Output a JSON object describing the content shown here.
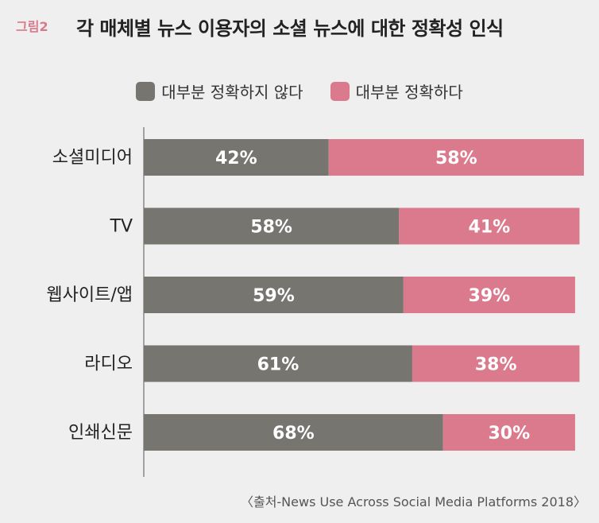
{
  "figure_label": "그림2",
  "title": "각 매체별 뉴스 이용자의 소셜 뉴스에 대한 정확성 인식",
  "source": "〈출처-News Use Across Social Media Platforms 2018〉",
  "colors": {
    "not_accurate": "#777570",
    "accurate": "#db7a8d",
    "axis": "#555555",
    "bar_text": "#ffffff",
    "label_text": "#222222"
  },
  "chart_data": {
    "type": "bar",
    "orientation": "horizontal",
    "stacked": true,
    "categories": [
      "소셜미디어",
      "TV",
      "웹사이트/앱",
      "라디오",
      "인쇄신문"
    ],
    "series": [
      {
        "name": "대부분 정확하지 않다",
        "values": [
          42,
          58,
          59,
          61,
          68
        ],
        "labels": [
          "42%",
          "58%",
          "59%",
          "61%",
          "68%"
        ]
      },
      {
        "name": "대부분 정확하다",
        "values": [
          58,
          41,
          39,
          38,
          30
        ],
        "labels": [
          "58%",
          "41%",
          "39%",
          "38%",
          "30%"
        ]
      }
    ],
    "xlim": [
      0,
      100
    ],
    "legend_position": "top-center",
    "grid": false
  }
}
